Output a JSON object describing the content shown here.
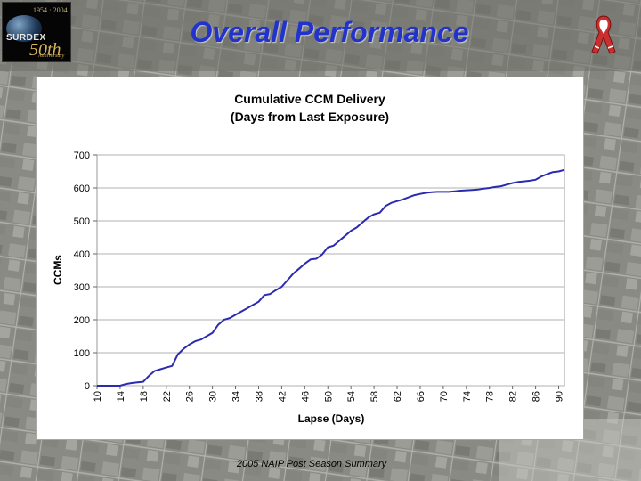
{
  "slide": {
    "title": "Overall Performance",
    "footer": "2005 NAIP Post Season Summary",
    "title_color": "#2233cc"
  },
  "logo": {
    "name": "SURDEX",
    "years": "1954 · 2004",
    "fifty": "50th",
    "anniversary": "Anniversary",
    "icon": "globe-icon"
  },
  "ribbon": {
    "icon": "flag-ribbon-icon"
  },
  "chart_data": {
    "type": "line",
    "title": "Cumulative CCM Delivery",
    "subtitle": "(Days from Last Exposure)",
    "xlabel": "Lapse (Days)",
    "ylabel": "CCMs",
    "xlim": [
      10,
      91
    ],
    "ylim": [
      0,
      700
    ],
    "x_ticks": [
      "10",
      "14",
      "18",
      "22",
      "26",
      "30",
      "34",
      "38",
      "42",
      "46",
      "50",
      "54",
      "58",
      "62",
      "66",
      "70",
      "74",
      "78",
      "82",
      "86",
      "90"
    ],
    "y_ticks": [
      "0",
      "100",
      "200",
      "300",
      "400",
      "500",
      "600",
      "700"
    ],
    "grid": true,
    "legend": "none",
    "line_color": "#2b2bb0",
    "series": [
      {
        "x": [
          10,
          11,
          12,
          13,
          14,
          15,
          16,
          17,
          18,
          19,
          20,
          21,
          22,
          23,
          24,
          25,
          26,
          27,
          28,
          29,
          30,
          31,
          32,
          33,
          34,
          35,
          36,
          37,
          38,
          39,
          40,
          41,
          42,
          43,
          44,
          45,
          46,
          47,
          48,
          49,
          50,
          51,
          52,
          53,
          54,
          55,
          56,
          57,
          58,
          59,
          60,
          61,
          62,
          63,
          64,
          65,
          66,
          67,
          68,
          69,
          70,
          71,
          72,
          73,
          74,
          75,
          76,
          77,
          78,
          79,
          80,
          81,
          82,
          83,
          84,
          85,
          86,
          87,
          88,
          89,
          90,
          91
        ],
        "y": [
          0,
          0,
          0,
          0,
          0,
          5,
          8,
          10,
          12,
          30,
          45,
          50,
          55,
          60,
          95,
          112,
          125,
          135,
          140,
          150,
          160,
          185,
          200,
          205,
          215,
          225,
          235,
          245,
          255,
          275,
          278,
          290,
          300,
          320,
          340,
          355,
          370,
          383,
          385,
          398,
          420,
          425,
          440,
          455,
          470,
          480,
          495,
          510,
          520,
          525,
          545,
          555,
          560,
          565,
          572,
          578,
          582,
          585,
          587,
          588,
          588,
          588,
          590,
          592,
          593,
          594,
          595,
          598,
          600,
          603,
          605,
          610,
          615,
          618,
          620,
          622,
          625,
          635,
          642,
          648,
          650,
          655
        ]
      }
    ]
  }
}
